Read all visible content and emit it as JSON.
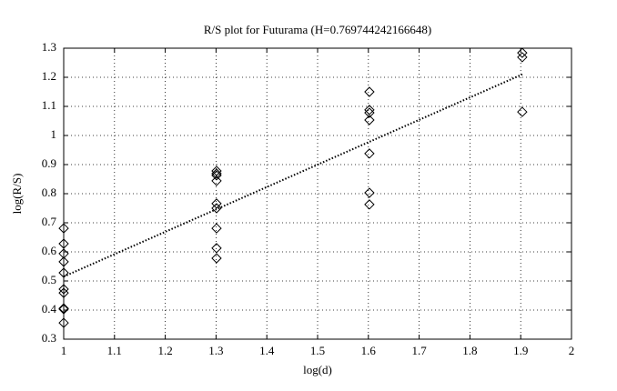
{
  "chart_data": {
    "type": "scatter",
    "title": "R/S plot for Futurama (H=0.769744242166648)",
    "x_label": "log(d)",
    "y_label": "log(R/S)",
    "xlim": [
      1,
      2
    ],
    "ylim": [
      0.3,
      1.3
    ],
    "xticks": [
      1,
      1.1,
      1.2,
      1.3,
      1.4,
      1.5,
      1.6,
      1.7,
      1.8,
      1.9,
      2
    ],
    "yticks": [
      0.3,
      0.4,
      0.5,
      0.6,
      0.7,
      0.8,
      0.9,
      1,
      1.1,
      1.2,
      1.3
    ],
    "grid": true,
    "series": [
      {
        "type": "scatter",
        "marker": "diamond",
        "color": "#000000",
        "x": [
          1,
          1,
          1,
          1,
          1,
          1,
          1,
          1,
          1,
          1,
          1.301,
          1.301,
          1.301,
          1.301,
          1.301,
          1.301,
          1.301,
          1.301,
          1.301,
          1.602,
          1.602,
          1.602,
          1.602,
          1.602,
          1.602,
          1.602,
          1.903,
          1.903,
          1.903
        ],
        "values": [
          0.681,
          0.628,
          0.594,
          0.566,
          0.528,
          0.472,
          0.459,
          0.406,
          0.403,
          0.356,
          0.878,
          0.869,
          0.863,
          0.844,
          0.766,
          0.75,
          0.681,
          0.613,
          0.578,
          1.15,
          1.088,
          1.078,
          1.053,
          0.938,
          0.803,
          0.763,
          1.284,
          1.269,
          1.081
        ]
      },
      {
        "type": "line",
        "style": "dotted",
        "color": "#000000",
        "x": [
          1,
          1.903
        ],
        "values": [
          0.515,
          1.21
        ]
      }
    ]
  }
}
